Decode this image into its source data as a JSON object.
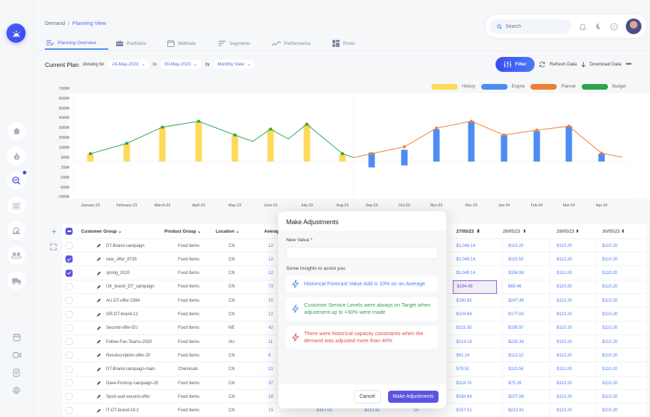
{
  "breadcrumb": {
    "parent": "Demand",
    "separator": "/",
    "current": "Planning View"
  },
  "search": {
    "placeholder": "Search"
  },
  "tabs": [
    {
      "label": "Planning Overview",
      "icon": "list-check-icon",
      "active": true
    },
    {
      "label": "Portfolios",
      "icon": "briefcase-icon"
    },
    {
      "label": "Methods",
      "icon": "calendar-icon"
    },
    {
      "label": "Segments",
      "icon": "filter-lines-icon"
    },
    {
      "label": "Performance",
      "icon": "trend-icon"
    },
    {
      "label": "Posts",
      "icon": "grid-icon"
    }
  ],
  "plan": {
    "title": "Current Plan",
    "showing_for": "showing for",
    "from_date": "24-May-2023",
    "to_label": "to",
    "to_date": "30-May-2023",
    "by_label": "by",
    "view": "Monthly View"
  },
  "actions": {
    "filter": "Filter",
    "refresh": "Refresh Data",
    "download": "Download Data"
  },
  "colors": {
    "history": "#ffd95a",
    "engine": "#4d8bf5",
    "planner": "#f07f33",
    "budget": "#2ea44f",
    "accent": "#5b54e0"
  },
  "chart_data": {
    "type": "bar",
    "title": "",
    "y_ticks": [
      "7000K",
      "6000K",
      "5000K",
      "4000K",
      "3000K",
      "2000K",
      "1000K",
      "600K",
      "200K",
      "-200K",
      "-600K",
      "-1000K"
    ],
    "categories": [
      "January-23",
      "February-23",
      "March-23",
      "April-23",
      "May-23",
      "June-23",
      "July-23",
      "Aug-23",
      "Sep-23",
      "Oct-23",
      "Nov-23",
      "Dec-23",
      "Jan-24",
      "Feb-24",
      "Mar-24",
      "Apr-24"
    ],
    "series": [
      {
        "name": "History",
        "type": "bar",
        "values": [
          800,
          1850,
          3500,
          4100,
          2700,
          3300,
          3800,
          800,
          null,
          null,
          null,
          null,
          null,
          null,
          null,
          null
        ]
      },
      {
        "name": "Engine",
        "type": "bar",
        "values": [
          null,
          null,
          null,
          null,
          null,
          null,
          null,
          null,
          [
            -600,
            900
          ],
          [
            -400,
            1200
          ],
          [
            0,
            3300
          ],
          [
            0,
            4100
          ],
          [
            0,
            2700
          ],
          [
            0,
            3100
          ],
          [
            0,
            3600
          ],
          [
            0,
            800
          ]
        ]
      },
      {
        "name": "Planner",
        "type": "line",
        "values": [
          null,
          null,
          null,
          null,
          null,
          null,
          null,
          null,
          800,
          1500,
          3400,
          4100,
          2700,
          3200,
          3600,
          850
        ],
        "trailing": 450
      },
      {
        "name": "Budget",
        "type": "line",
        "values": [
          800,
          1850,
          3500,
          4100,
          2700,
          3300,
          3800,
          800
        ],
        "between_points": [
          2050,
          2300,
          400
        ]
      }
    ],
    "legend": [
      "History",
      "Engine",
      "Planner",
      "Budget"
    ],
    "legend_position": "top-right",
    "grid": false
  },
  "table": {
    "headers": {
      "customer": "Customer Group",
      "product": "Product Group",
      "location": "Location",
      "average": "Average",
      "d1": "27/05/23",
      "d2": "28/05/23",
      "d3": "29/05/23",
      "d4": "30/05/23"
    },
    "rows": [
      {
        "checked": false,
        "name": "DT-Brand-campaign",
        "product": "Food Items",
        "loc": "CN",
        "avg": "12",
        "d1": "$1,049.14",
        "d2": "$110.20",
        "d3": "$110.20",
        "d4": "$110.20"
      },
      {
        "checked": true,
        "name": "new_offer_8735",
        "product": "Food Items",
        "loc": "CN",
        "avg": "12",
        "d1": "$1,049.14",
        "d2": "$115.50",
        "d3": "$110.20",
        "d4": "$110.20"
      },
      {
        "checked": true,
        "name": "spring_2020",
        "product": "Food Items",
        "loc": "CN",
        "avg": "12",
        "d1": "$1,049.14",
        "d2": "$156.96",
        "d3": "$110.20",
        "d4": "$110.20"
      },
      {
        "checked": false,
        "name": "UK_brand_DT_campaign",
        "product": "Food Items",
        "loc": "CN",
        "avg": "73",
        "d1": "$194.49",
        "d2": "$69.46",
        "d3": "$110.20",
        "d4": "$110.20",
        "selected": true
      },
      {
        "checked": false,
        "name": "AU-DT-offer-2394",
        "product": "Food Items",
        "loc": "CN",
        "avg": "15",
        "d1": "$190.65",
        "d2": "$247.49",
        "d3": "$110.20",
        "d4": "$110.20"
      },
      {
        "checked": false,
        "name": "GR-DT-brand-12",
        "product": "Food Items",
        "loc": "CN",
        "avg": "12",
        "d1": "$104.94",
        "d2": "$177.04",
        "d3": "$110.20",
        "d4": "$110.20"
      },
      {
        "checked": false,
        "name": "Second-offer-EU",
        "product": "Food Items",
        "loc": "NE",
        "avg": "42",
        "d1": "$115.33",
        "d2": "$195.97",
        "d3": "$110.20",
        "d4": "$110.20"
      },
      {
        "checked": false,
        "name": "Follow-Fav-Teams-2020",
        "product": "Food Items",
        "loc": "AU",
        "avg": "11",
        "d1": "$214.19",
        "d2": "$226.38",
        "d3": "$110.20",
        "d4": "$110.20"
      },
      {
        "checked": false,
        "name": "Resubscription-offer-20",
        "product": "Food Items",
        "loc": "CN",
        "avg": "8",
        "d1": "$91.24",
        "d2": "$113.12",
        "d3": "$110.20",
        "d4": "$110.20"
      },
      {
        "checked": false,
        "name": "DT-Brand-campaign-main",
        "product": "Chemicals",
        "loc": "CN",
        "avg": "21",
        "d1": "$79.51",
        "d2": "$110.56",
        "d3": "$110.20",
        "d4": "$110.20"
      },
      {
        "checked": false,
        "name": "Dave-Portnoy-campaign-20",
        "product": "Food Items",
        "loc": "CN",
        "avg": "37",
        "d1": "$118.74",
        "d2": "$75.39",
        "d3": "$110.20",
        "d4": "$110.20"
      },
      {
        "checked": false,
        "name": "Sport-aud-second-offer",
        "product": "Food Items",
        "loc": "CN",
        "avg": "18",
        "d1": "$184.69",
        "d2": "$227.06",
        "d3": "$110.20",
        "d4": "$110.20"
      },
      {
        "checked": false,
        "name": "IT-DT-brand-19-2",
        "product": "Food Items",
        "loc": "CN",
        "avg": "15",
        "d1": "$157.01",
        "d2": "$213.91",
        "d3": "$110.20",
        "d4": "$110.20",
        "hidden_a": "$157.01",
        "hidden_b": "$213.91",
        "hidden_c": "15"
      }
    ]
  },
  "modal": {
    "title": "Make Adjustments",
    "field_label": "New Value *",
    "field_value": "",
    "insights_label": "Some Insights to assist you",
    "insights": [
      {
        "text": "Historical Forecast Value Add is 10% on an Average",
        "color": "#4a7cf7",
        "icon_color": "#4a7cf7"
      },
      {
        "text": "Customer Service Levels were always on Target when adjustment up to +30% were made",
        "color": "#2ea44f",
        "icon_color": "#4a7cf7"
      },
      {
        "text": "There were historical capacity constraints when the demand was adjusted more than 40%",
        "color": "#e04848",
        "icon_color": "#e04848"
      }
    ],
    "cancel": "Cancel",
    "confirm": "Make Adjustments"
  }
}
